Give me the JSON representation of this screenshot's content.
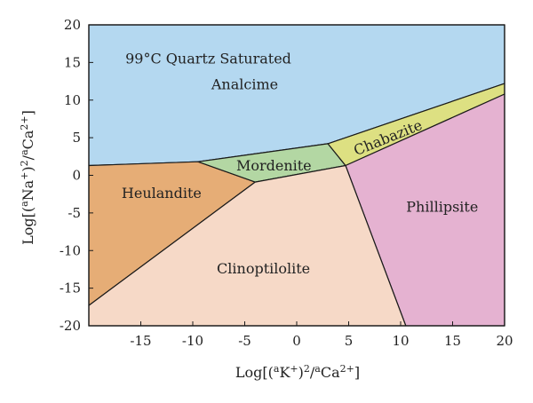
{
  "chart_data": {
    "type": "area",
    "title": "",
    "xlabel": "Log[(aK+)2/aCa2+]",
    "ylabel": "Log[(aNa+)2/aCa2+]",
    "xlim": [
      -20,
      20
    ],
    "ylim": [
      -20,
      20
    ],
    "xticks": [
      -15,
      -10,
      -5,
      0,
      5,
      10,
      15,
      20
    ],
    "yticks": [
      -20,
      -15,
      -10,
      -5,
      0,
      5,
      10,
      15,
      20
    ],
    "grid": false,
    "regions": [
      {
        "name": "Analcime",
        "label": "Analcime",
        "color": "#b4d8f0",
        "polygon": [
          [
            -20,
            20
          ],
          [
            20,
            20
          ],
          [
            20,
            12.2
          ],
          [
            3,
            4.2
          ],
          [
            -9.5,
            1.8
          ],
          [
            -20,
            1.3
          ]
        ],
        "label_at": [
          -5,
          12
        ]
      },
      {
        "name": "Heulandite",
        "label": "Heulandite",
        "color": "#e6ad76",
        "polygon": [
          [
            -20,
            1.3
          ],
          [
            -9.5,
            1.8
          ],
          [
            -4,
            -0.9
          ],
          [
            -20,
            -17.3
          ]
        ],
        "label_at": [
          -13,
          -2.5
        ]
      },
      {
        "name": "Mordenite",
        "label": "Mordenite",
        "color": "#b3d7a3",
        "polygon": [
          [
            -9.5,
            1.8
          ],
          [
            3,
            4.2
          ],
          [
            4.7,
            1.3
          ],
          [
            -4,
            -0.9
          ]
        ],
        "label_at": [
          -2.2,
          1.2
        ]
      },
      {
        "name": "Chabazite",
        "label": "Chabazite",
        "color": "#dde082",
        "polygon": [
          [
            3,
            4.2
          ],
          [
            20,
            12.2
          ],
          [
            20,
            10.8
          ],
          [
            4.7,
            1.3
          ]
        ],
        "label_at": [
          8.8,
          4.9
        ],
        "label_rotate": -22
      },
      {
        "name": "Phillipsite",
        "label": "Phillipsite",
        "color": "#e5b2d1",
        "polygon": [
          [
            4.7,
            1.3
          ],
          [
            20,
            10.8
          ],
          [
            20,
            -20
          ],
          [
            10.5,
            -20
          ]
        ],
        "label_at": [
          14,
          -4.3
        ]
      },
      {
        "name": "Clinoptilolite",
        "label": "Clinoptilolite",
        "color": "#f6d9c7",
        "polygon": [
          [
            -20,
            -17.3
          ],
          [
            -4,
            -0.9
          ],
          [
            4.7,
            1.3
          ],
          [
            10.5,
            -20
          ],
          [
            -20,
            -20
          ]
        ],
        "label_at": [
          -3.2,
          -12.5
        ]
      }
    ],
    "annotations": [
      {
        "text": "99°C Quartz Saturated",
        "at": [
          -8.5,
          15.4
        ]
      }
    ]
  }
}
